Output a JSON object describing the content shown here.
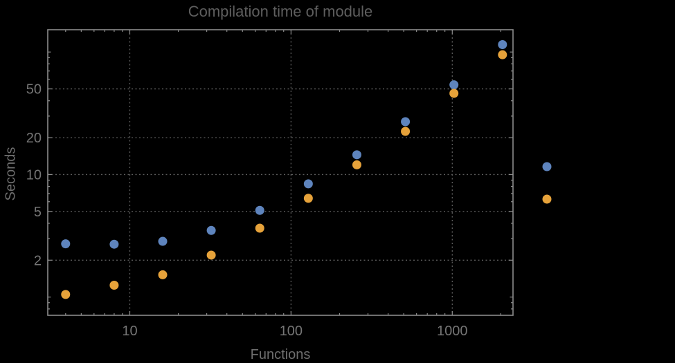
{
  "chart_data": {
    "type": "scatter",
    "title": "Compilation time of module",
    "xlabel": "Functions",
    "ylabel": "Seconds",
    "x_scale": "log",
    "y_scale": "log",
    "grid": true,
    "x_range": [
      3.1,
      2380
    ],
    "y_range": [
      0.71,
      152
    ],
    "x_ticks": [
      {
        "value": 10,
        "label": "10"
      },
      {
        "value": 100,
        "label": "100"
      },
      {
        "value": 1000,
        "label": "1000"
      }
    ],
    "y_ticks": [
      {
        "value": 50,
        "label": "50"
      },
      {
        "value": 20,
        "label": "20"
      },
      {
        "value": 10,
        "label": "10"
      },
      {
        "value": 5,
        "label": "5"
      },
      {
        "value": 2,
        "label": "2"
      }
    ],
    "x": [
      4,
      8,
      16,
      32,
      64,
      128,
      256,
      512,
      1024,
      2048
    ],
    "series": [
      {
        "name": "blue-series",
        "color": "#5e84bd",
        "values": [
          2.72,
          2.7,
          2.85,
          3.5,
          5.1,
          8.4,
          14.5,
          27,
          54,
          115
        ]
      },
      {
        "name": "orange-series",
        "color": "#e6a23a",
        "values": [
          1.05,
          1.25,
          1.52,
          2.2,
          3.65,
          6.4,
          12,
          22.5,
          46,
          95
        ]
      }
    ],
    "legend": {
      "position": "right",
      "entries": [
        {
          "name": "blue-series",
          "color": "#5e84bd",
          "label": ""
        },
        {
          "name": "orange-series",
          "color": "#e6a23a",
          "label": ""
        }
      ]
    }
  },
  "colors": {
    "background": "#000000",
    "frame": "#8c8c8c",
    "gridline": "#5e5e5e",
    "tick_label": "#757575"
  }
}
